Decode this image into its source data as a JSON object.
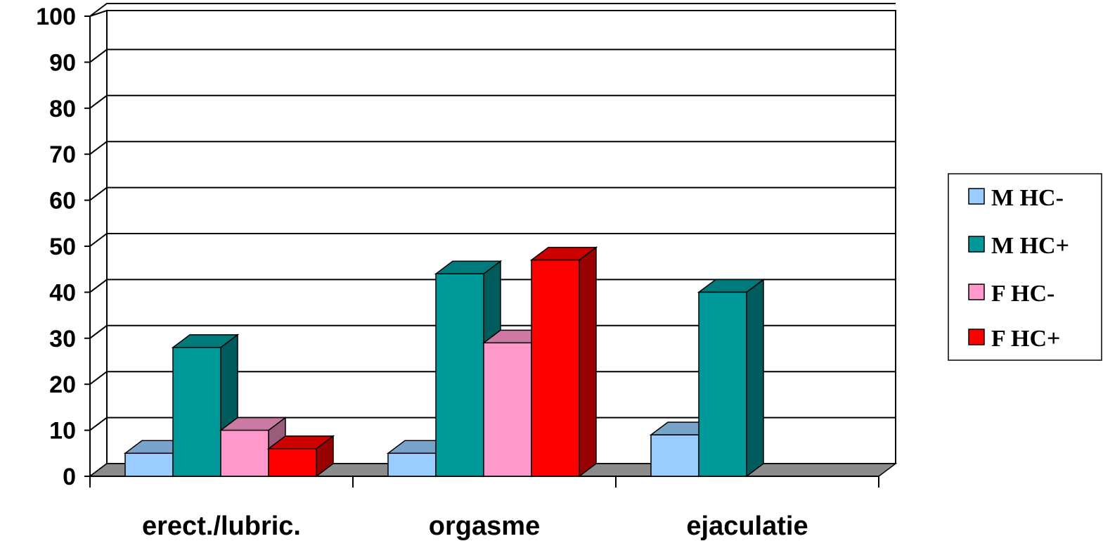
{
  "chart_data": {
    "type": "bar",
    "categories": [
      "erect./lubric.",
      "orgasme",
      "ejaculatie"
    ],
    "series": [
      {
        "name": "M HC-",
        "color": "#99CCFF",
        "values": [
          5,
          5,
          9
        ]
      },
      {
        "name": "M HC+",
        "color": "#009999",
        "values": [
          28,
          44,
          40
        ]
      },
      {
        "name": "F HC-",
        "color": "#FF99CC",
        "values": [
          10,
          29,
          0
        ]
      },
      {
        "name": "F HC+",
        "color": "#FF0000",
        "values": [
          6,
          47,
          0
        ]
      }
    ],
    "title": "",
    "xlabel": "",
    "ylabel": "",
    "ylim": [
      0,
      100
    ],
    "yticks": [
      "0",
      "10",
      "20",
      "30",
      "40",
      "50",
      "60",
      "70",
      "80",
      "90",
      "100"
    ],
    "grid": true,
    "legend_position": "right",
    "style": "3d-clustered-column"
  }
}
